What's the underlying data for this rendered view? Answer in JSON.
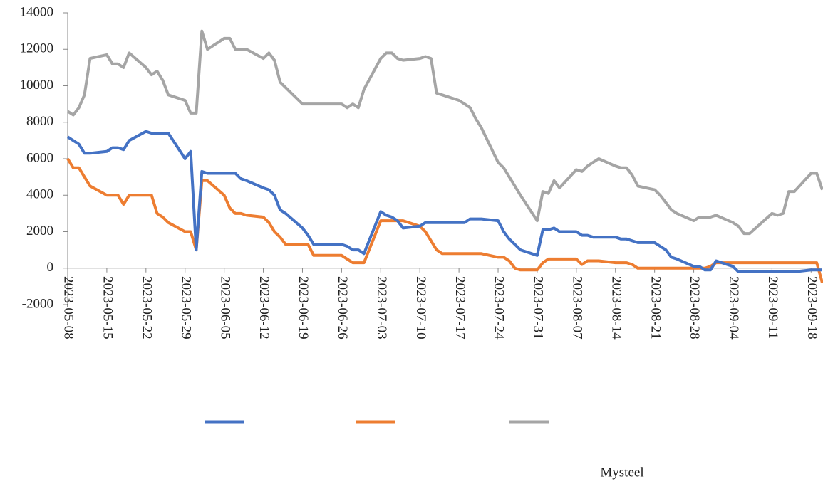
{
  "chart_data": {
    "type": "line",
    "source": "Mysteel",
    "x": [
      "2023-05-08",
      "2023-05-09",
      "2023-05-10",
      "2023-05-11",
      "2023-05-12",
      "2023-05-15",
      "2023-05-16",
      "2023-05-17",
      "2023-05-18",
      "2023-05-19",
      "2023-05-22",
      "2023-05-23",
      "2023-05-24",
      "2023-05-25",
      "2023-05-26",
      "2023-05-29",
      "2023-05-30",
      "2023-05-31",
      "2023-06-01",
      "2023-06-02",
      "2023-06-05",
      "2023-06-06",
      "2023-06-07",
      "2023-06-08",
      "2023-06-09",
      "2023-06-12",
      "2023-06-13",
      "2023-06-14",
      "2023-06-15",
      "2023-06-16",
      "2023-06-19",
      "2023-06-20",
      "2023-06-21",
      "2023-06-26",
      "2023-06-27",
      "2023-06-28",
      "2023-06-29",
      "2023-06-30",
      "2023-07-03",
      "2023-07-04",
      "2023-07-05",
      "2023-07-06",
      "2023-07-07",
      "2023-07-10",
      "2023-07-11",
      "2023-07-12",
      "2023-07-13",
      "2023-07-14",
      "2023-07-17",
      "2023-07-18",
      "2023-07-19",
      "2023-07-20",
      "2023-07-21",
      "2023-07-24",
      "2023-07-25",
      "2023-07-26",
      "2023-07-27",
      "2023-07-28",
      "2023-07-31",
      "2023-08-01",
      "2023-08-02",
      "2023-08-03",
      "2023-08-04",
      "2023-08-07",
      "2023-08-08",
      "2023-08-09",
      "2023-08-10",
      "2023-08-11",
      "2023-08-14",
      "2023-08-15",
      "2023-08-16",
      "2023-08-17",
      "2023-08-18",
      "2023-08-21",
      "2023-08-22",
      "2023-08-23",
      "2023-08-24",
      "2023-08-25",
      "2023-08-28",
      "2023-08-29",
      "2023-08-30",
      "2023-08-31",
      "2023-09-01",
      "2023-09-04",
      "2023-09-05",
      "2023-09-06",
      "2023-09-07",
      "2023-09-11",
      "2023-09-12",
      "2023-09-13",
      "2023-09-14",
      "2023-09-15",
      "2023-09-18",
      "2023-09-19",
      "2023-09-20"
    ],
    "series": [
      {
        "color": "#4472c4",
        "values": [
          7200,
          7000,
          6800,
          6300,
          6300,
          6400,
          6600,
          6600,
          6500,
          7000,
          7500,
          7400,
          7400,
          7400,
          7400,
          6000,
          6400,
          1000,
          5300,
          5200,
          5200,
          5200,
          5200,
          4900,
          4800,
          4400,
          4300,
          4000,
          3200,
          3000,
          2200,
          1800,
          1300,
          1300,
          1200,
          1000,
          1000,
          800,
          3100,
          2900,
          2800,
          2600,
          2200,
          2300,
          2500,
          2500,
          2500,
          2500,
          2500,
          2500,
          2700,
          2700,
          2700,
          2600,
          2000,
          1600,
          1300,
          1000,
          700,
          2100,
          2100,
          2200,
          2000,
          2000,
          1800,
          1800,
          1700,
          1700,
          1700,
          1600,
          1600,
          1500,
          1400,
          1400,
          1200,
          1000,
          600,
          500,
          100,
          100,
          -100,
          -100,
          400,
          100,
          -200,
          -200,
          -200,
          -200,
          -200,
          -200,
          -200,
          -200,
          -100,
          -100,
          -100
        ]
      },
      {
        "color": "#ed7d31",
        "values": [
          6000,
          5500,
          5500,
          5000,
          4500,
          4000,
          4000,
          4000,
          3500,
          4000,
          4000,
          4000,
          3000,
          2800,
          2500,
          2000,
          2000,
          1000,
          4800,
          4800,
          4000,
          3300,
          3000,
          3000,
          2900,
          2800,
          2500,
          2000,
          1700,
          1300,
          1300,
          1300,
          700,
          700,
          500,
          300,
          300,
          300,
          2600,
          2600,
          2600,
          2600,
          2600,
          2300,
          2000,
          1500,
          1000,
          800,
          800,
          800,
          800,
          800,
          800,
          600,
          600,
          400,
          0,
          -100,
          -100,
          300,
          500,
          500,
          500,
          500,
          200,
          400,
          400,
          400,
          300,
          300,
          300,
          200,
          0,
          0,
          0,
          0,
          0,
          0,
          0,
          0,
          0,
          100,
          300,
          300,
          300,
          300,
          300,
          300,
          300,
          300,
          300,
          300,
          300,
          300,
          -800
        ]
      },
      {
        "color": "#a5a5a5",
        "values": [
          8600,
          8400,
          8800,
          9500,
          11500,
          11700,
          11200,
          11200,
          11000,
          11800,
          11000,
          10600,
          10800,
          10300,
          9500,
          9200,
          8500,
          8500,
          13000,
          12000,
          12600,
          12600,
          12000,
          12000,
          12000,
          11500,
          11800,
          11400,
          10200,
          9900,
          9000,
          9000,
          9000,
          9000,
          8800,
          9000,
          8800,
          9800,
          11500,
          11800,
          11800,
          11500,
          11400,
          11500,
          11600,
          11500,
          9600,
          9500,
          9200,
          9000,
          8800,
          8200,
          7700,
          5800,
          5500,
          5000,
          4500,
          4000,
          2600,
          4200,
          4100,
          4800,
          4400,
          5400,
          5300,
          5600,
          5800,
          6000,
          5600,
          5500,
          5500,
          5100,
          4500,
          4300,
          4000,
          3600,
          3200,
          3000,
          2600,
          2800,
          2800,
          2800,
          2900,
          2500,
          2300,
          1900,
          1900,
          3000,
          2900,
          3000,
          4200,
          4200,
          5200,
          5200,
          4300
        ]
      }
    ],
    "xlim": [
      "2023-05-08",
      "2023-09-20"
    ],
    "xticks": [
      "2023-05-08",
      "2023-05-15",
      "2023-05-22",
      "2023-05-29",
      "2023-06-05",
      "2023-06-12",
      "2023-06-19",
      "2023-06-26",
      "2023-07-03",
      "2023-07-10",
      "2023-07-17",
      "2023-07-24",
      "2023-07-31",
      "2023-08-07",
      "2023-08-14",
      "2023-08-21",
      "2023-08-28",
      "2023-09-04",
      "2023-09-11",
      "2023-09-18"
    ],
    "ylim": [
      -2000,
      14000
    ],
    "yticks": [
      -2000,
      0,
      2000,
      4000,
      6000,
      8000,
      10000,
      12000,
      14000
    ]
  }
}
